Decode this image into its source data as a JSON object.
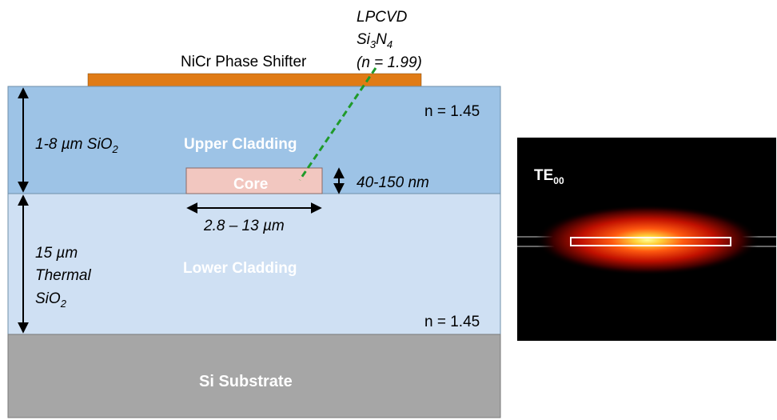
{
  "labels": {
    "phase_shifter": "NiCr Phase Shifter",
    "material_line1": "LPCVD",
    "material_si": "Si",
    "material_sub3": "3",
    "material_n": "N",
    "material_sub4": "4",
    "material_index": "(n = 1.99)",
    "upper_index": "n = 1.45",
    "lower_index": "n = 1.45",
    "upper_thickness_main": "1-8 µm SiO",
    "upper_thickness_sub": "2",
    "upper_cladding": "Upper Cladding",
    "core": "Core",
    "core_thickness": "40-150 nm",
    "core_width": "2.8 – 13 µm",
    "lower_thickness_line1": "15 µm",
    "lower_thickness_line2": "Thermal",
    "lower_thickness_line3_main": "SiO",
    "lower_thickness_line3_sub": "2",
    "lower_cladding": "Lower Cladding",
    "substrate": "Si Substrate",
    "mode_label_main": "TE",
    "mode_label_sub": "00"
  },
  "colors": {
    "phase_shifter": "#e07b16",
    "upper_cladding": "#9dc3e6",
    "lower_cladding": "#cfe0f3",
    "core": "#f2c7c0",
    "substrate": "#a6a6a6",
    "leader_line": "#1f9a2a",
    "mode_background": "#000000"
  }
}
